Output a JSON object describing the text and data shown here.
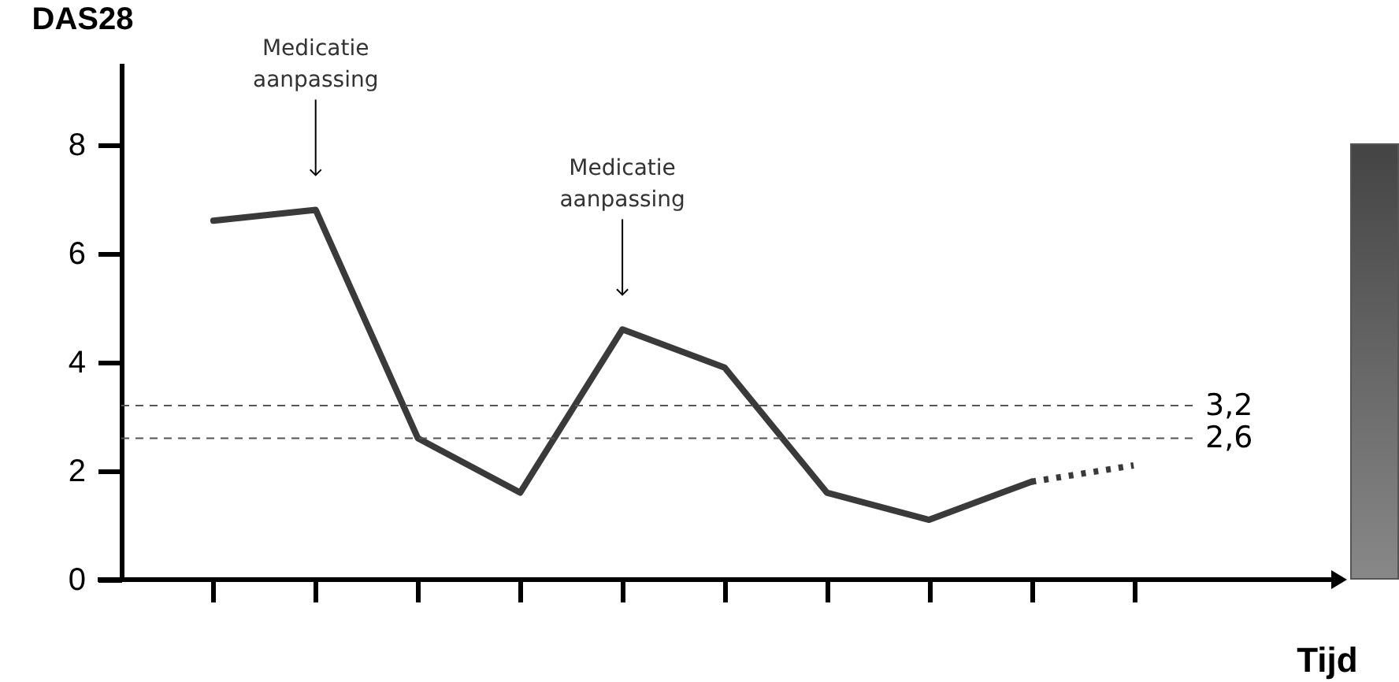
{
  "chart_data": {
    "type": "line",
    "ylabel": "DAS28",
    "xlabel": "Tijd",
    "categories": [
      null,
      null,
      null,
      null,
      null,
      null,
      null,
      null,
      null,
      null
    ],
    "series": [
      {
        "color": "#3a3a3a",
        "line_style": "solid",
        "values": [
          6.6,
          6.8,
          2.6,
          1.6,
          4.6,
          3.9,
          1.6,
          1.1,
          1.8,
          null
        ]
      },
      {
        "color": "#3a3a3a",
        "line_style": "dotted",
        "values": [
          null,
          null,
          null,
          null,
          null,
          null,
          null,
          null,
          1.8,
          2.1
        ]
      }
    ],
    "ylim": [
      0,
      9.5
    ],
    "yticks": [
      0,
      2,
      4,
      6,
      8
    ],
    "grid": false,
    "marker": "none",
    "ref_lines": [
      {
        "axis": "y",
        "value": 3.2,
        "label": "3,2",
        "color": "#555555",
        "line_style": "dashed"
      },
      {
        "axis": "y",
        "value": 2.6,
        "label": "2,6",
        "color": "#555555",
        "line_style": "dashed"
      }
    ],
    "annotations": [
      "Medicatie aanpassing",
      "Medicatie aanpassing"
    ]
  }
}
